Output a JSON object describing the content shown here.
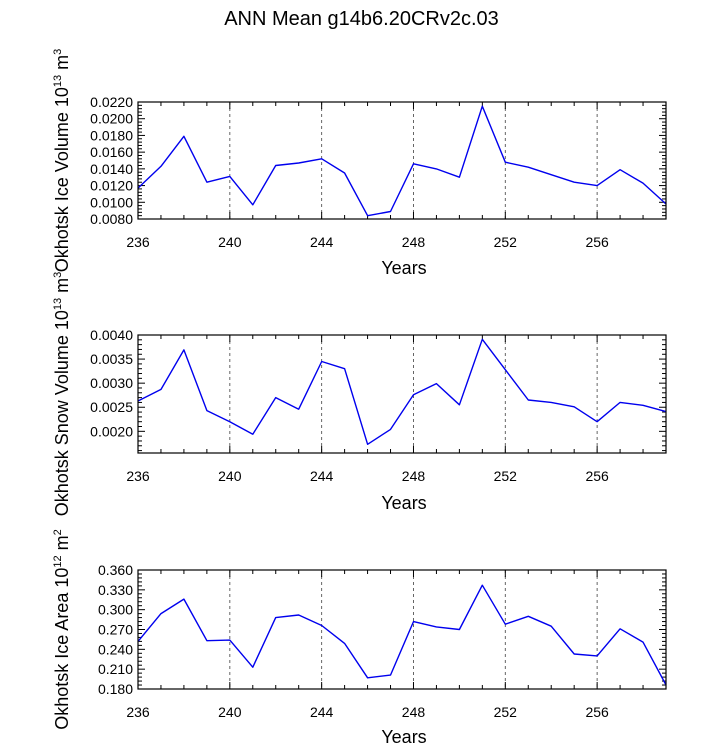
{
  "title": "ANN Mean g14b6.20CRv2c.03",
  "chart_data": [
    {
      "type": "line",
      "ylabel": "Okhotsk Ice Volume",
      "yunit": "10",
      "yunit_exp": "13",
      "yunit_tail": " m",
      "yunit_tail_exp": "3",
      "xlabel": "Years",
      "xlim": [
        236,
        259
      ],
      "ylim": [
        0.008,
        0.022
      ],
      "yticks": [
        0.008,
        0.01,
        0.012,
        0.014,
        0.016,
        0.018,
        0.02,
        0.022
      ],
      "ytick_labels": [
        "0.0080",
        "0.0100",
        "0.0120",
        "0.0140",
        "0.0160",
        "0.0180",
        "0.0200",
        "0.0220"
      ],
      "xticks": [
        236,
        240,
        244,
        248,
        252,
        256
      ],
      "xtick_labels": [
        "236",
        "240",
        "244",
        "248",
        "252",
        "256"
      ],
      "series": [
        {
          "name": "Okhotsk Ice Volume",
          "x": [
            236,
            237,
            238,
            239,
            240,
            241,
            242,
            243,
            244,
            245,
            246,
            247,
            248,
            249,
            250,
            251,
            252,
            253,
            254,
            255,
            256,
            257,
            258,
            259
          ],
          "y": [
            0.0117,
            0.0143,
            0.0179,
            0.0124,
            0.0131,
            0.0097,
            0.0144,
            0.0147,
            0.0152,
            0.0135,
            0.0084,
            0.0089,
            0.0146,
            0.014,
            0.013,
            0.0215,
            0.0148,
            0.0142,
            0.0133,
            0.0124,
            0.012,
            0.0139,
            0.0123,
            0.0098
          ]
        }
      ]
    },
    {
      "type": "line",
      "ylabel": "Okhotsk Snow Volume",
      "yunit": "10",
      "yunit_exp": "13",
      "yunit_tail": " m",
      "yunit_tail_exp": "3",
      "xlabel": "Years",
      "xlim": [
        236,
        259
      ],
      "ylim": [
        0.00155,
        0.004
      ],
      "yticks": [
        0.002,
        0.0025,
        0.003,
        0.0035,
        0.004
      ],
      "ytick_labels": [
        "0.0020",
        "0.0025",
        "0.0030",
        "0.0035",
        "0.0040"
      ],
      "xticks": [
        236,
        240,
        244,
        248,
        252,
        256
      ],
      "xtick_labels": [
        "236",
        "240",
        "244",
        "248",
        "252",
        "256"
      ],
      "series": [
        {
          "name": "Okhotsk Snow Volume",
          "x": [
            236,
            237,
            238,
            239,
            240,
            241,
            242,
            243,
            244,
            245,
            246,
            247,
            248,
            249,
            250,
            251,
            252,
            253,
            254,
            255,
            256,
            257,
            258,
            259
          ],
          "y": [
            0.00263,
            0.00287,
            0.00369,
            0.00243,
            0.0022,
            0.00194,
            0.0027,
            0.00246,
            0.00345,
            0.0033,
            0.00173,
            0.00204,
            0.00276,
            0.00299,
            0.00255,
            0.00391,
            0.00328,
            0.00265,
            0.0026,
            0.00251,
            0.0022,
            0.0026,
            0.00254,
            0.00241
          ]
        }
      ]
    },
    {
      "type": "line",
      "ylabel": "Okhotsk Ice Area",
      "yunit": "10",
      "yunit_exp": "12",
      "yunit_tail": " m",
      "yunit_tail_exp": "2",
      "xlabel": "Years",
      "xlim": [
        236,
        259
      ],
      "ylim": [
        0.18,
        0.36
      ],
      "yticks": [
        0.18,
        0.21,
        0.24,
        0.27,
        0.3,
        0.33,
        0.36
      ],
      "ytick_labels": [
        "0.180",
        "0.210",
        "0.240",
        "0.270",
        "0.300",
        "0.330",
        "0.360"
      ],
      "xticks": [
        236,
        240,
        244,
        248,
        252,
        256
      ],
      "xtick_labels": [
        "236",
        "240",
        "244",
        "248",
        "252",
        "256"
      ],
      "series": [
        {
          "name": "Okhotsk Ice Area",
          "x": [
            236,
            237,
            238,
            239,
            240,
            241,
            242,
            243,
            244,
            245,
            246,
            247,
            248,
            249,
            250,
            251,
            252,
            253,
            254,
            255,
            256,
            257,
            258,
            259
          ],
          "y": [
            0.252,
            0.294,
            0.316,
            0.253,
            0.254,
            0.213,
            0.288,
            0.292,
            0.276,
            0.249,
            0.197,
            0.201,
            0.282,
            0.274,
            0.27,
            0.337,
            0.278,
            0.29,
            0.275,
            0.233,
            0.23,
            0.271,
            0.251,
            0.186
          ]
        }
      ]
    }
  ],
  "colors": {
    "line": "#0000ee",
    "axis": "#000000",
    "grid": "#555555"
  }
}
